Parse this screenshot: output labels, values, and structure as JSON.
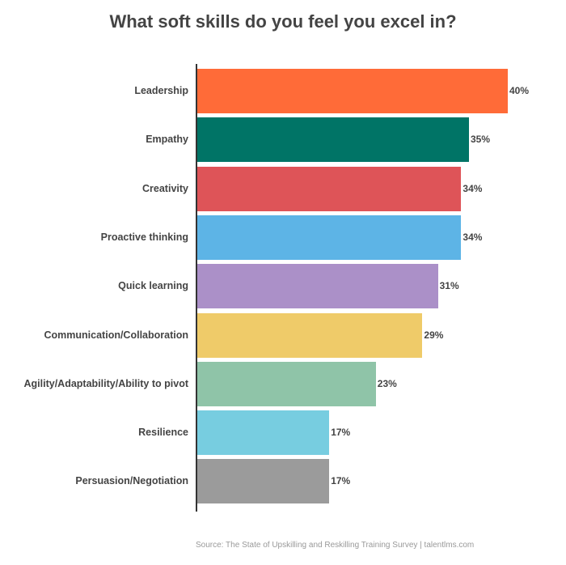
{
  "chart_data": {
    "type": "bar",
    "orientation": "horizontal",
    "title": "What soft skills do you feel you excel in?",
    "xlabel": "",
    "ylabel": "",
    "categories": [
      "Leadership",
      "Empathy",
      "Creativity",
      "Proactive thinking",
      "Quick learning",
      "Communication/Collaboration",
      "Agility/Adaptability/Ability to pivot",
      "Resilience",
      "Persuasion/Negotiation"
    ],
    "values": [
      40,
      35,
      34,
      34,
      31,
      29,
      23,
      17,
      17
    ],
    "value_labels": [
      "40%",
      "35%",
      "34%",
      "34%",
      "31%",
      "29%",
      "23%",
      "17%",
      "17%"
    ],
    "colors": [
      "#ff6b38",
      "#007466",
      "#de5458",
      "#5db4e6",
      "#ab90c8",
      "#efcb69",
      "#8fc4a8",
      "#77cde0",
      "#9b9b9b"
    ],
    "unit": "%",
    "grid": false,
    "legend": null
  },
  "source": "Source: The State of Upskilling and Reskilling Training Survey  |  talentlms.com"
}
